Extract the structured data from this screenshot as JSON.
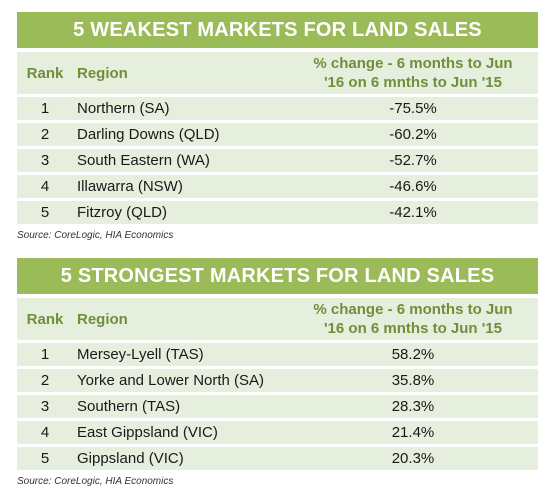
{
  "weakest": {
    "title": "5 WEAKEST MARKETS FOR LAND SALES",
    "headers": {
      "rank": "Rank",
      "region": "Region",
      "change_line1": "% change - 6 months to Jun",
      "change_line2": "'16 on 6 mnths to Jun '15"
    },
    "rows": [
      {
        "rank": "1",
        "region": "Northern (SA)",
        "change": "-75.5%"
      },
      {
        "rank": "2",
        "region": "Darling Downs (QLD)",
        "change": "-60.2%"
      },
      {
        "rank": "3",
        "region": "South Eastern (WA)",
        "change": "-52.7%"
      },
      {
        "rank": "4",
        "region": "Illawarra (NSW)",
        "change": "-46.6%"
      },
      {
        "rank": "5",
        "region": "Fitzroy (QLD)",
        "change": "-42.1%"
      }
    ],
    "source": "Source: CoreLogic, HIA Economics"
  },
  "strongest": {
    "title": "5 STRONGEST MARKETS FOR LAND SALES",
    "headers": {
      "rank": "Rank",
      "region": "Region",
      "change_line1": "% change - 6 months to Jun",
      "change_line2": "'16 on 6 mnths to Jun '15"
    },
    "rows": [
      {
        "rank": "1",
        "region": "Mersey-Lyell (TAS)",
        "change": "58.2%"
      },
      {
        "rank": "2",
        "region": "Yorke and Lower North (SA)",
        "change": "35.8%"
      },
      {
        "rank": "3",
        "region": "Southern (TAS)",
        "change": "28.3%"
      },
      {
        "rank": "4",
        "region": "East Gippsland (VIC)",
        "change": "21.4%"
      },
      {
        "rank": "5",
        "region": "Gippsland (VIC)",
        "change": "20.3%"
      }
    ],
    "source": "Source: CoreLogic, HIA Economics"
  },
  "colors": {
    "title_bar": "#9bbb59",
    "header_text": "#6f8f3a",
    "row_background": "#e6eedd"
  }
}
